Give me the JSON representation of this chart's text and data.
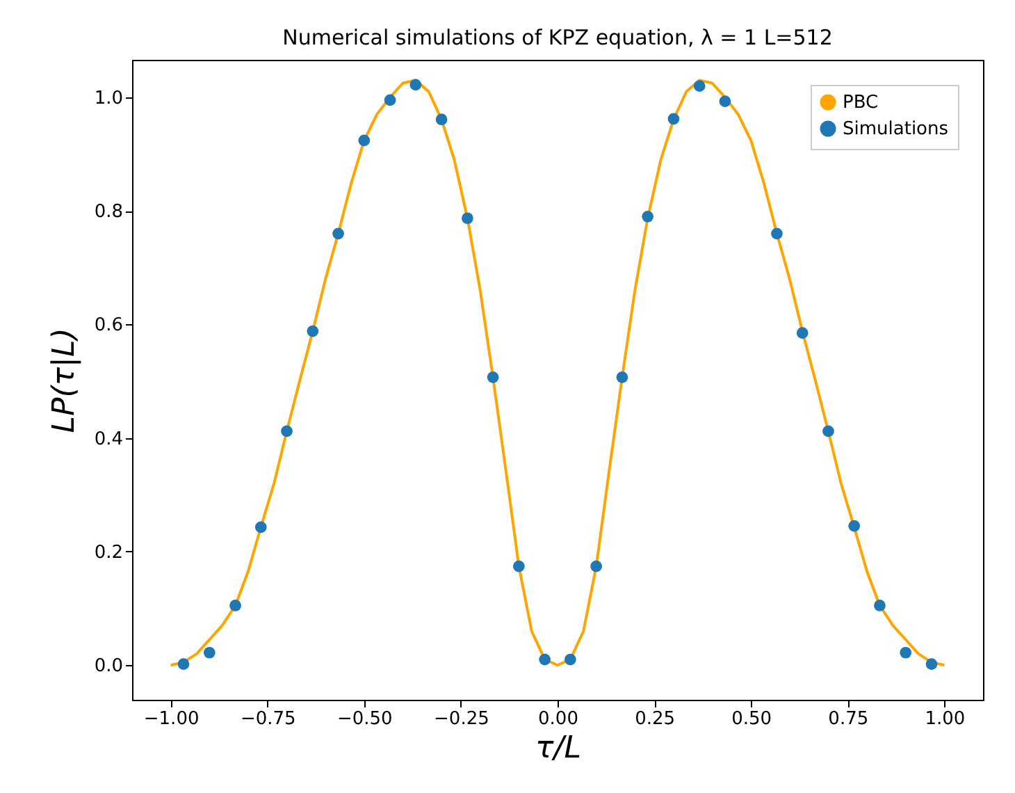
{
  "chart_data": {
    "type": "line",
    "title": "Numerical simulations of KPZ equation, λ = 1 L=512",
    "xlabel": "τ/L",
    "ylabel": "LP(τ|L)",
    "xlim": [
      -1.1,
      1.1
    ],
    "ylim": [
      -0.061,
      1.066
    ],
    "xticks": [
      {
        "value": -1,
        "label": "−1.00"
      },
      {
        "value": -0.75,
        "label": "−0.75"
      },
      {
        "value": -0.5,
        "label": "−0.50"
      },
      {
        "value": -0.25,
        "label": "−0.25"
      },
      {
        "value": 0,
        "label": "0.00"
      },
      {
        "value": 0.25,
        "label": "0.25"
      },
      {
        "value": 0.5,
        "label": "0.50"
      },
      {
        "value": 0.75,
        "label": "0.75"
      },
      {
        "value": 1,
        "label": "1.00"
      }
    ],
    "yticks": [
      {
        "value": 0,
        "label": "0.0"
      },
      {
        "value": 0.2,
        "label": "0.2"
      },
      {
        "value": 0.4,
        "label": "0.4"
      },
      {
        "value": 0.6,
        "label": "0.6"
      },
      {
        "value": 0.8,
        "label": "0.8"
      },
      {
        "value": 1,
        "label": "1.0"
      }
    ],
    "grid": false,
    "legend": "top right",
    "series": [
      {
        "name": "PBC",
        "type": "line",
        "color": "#ffa500",
        "x": [
          -1,
          -0.967,
          -0.933,
          -0.9,
          -0.867,
          -0.833,
          -0.8,
          -0.767,
          -0.733,
          -0.7,
          -0.667,
          -0.633,
          -0.6,
          -0.567,
          -0.533,
          -0.5,
          -0.467,
          -0.433,
          -0.4,
          -0.367,
          -0.333,
          -0.3,
          -0.267,
          -0.233,
          -0.2,
          -0.167,
          -0.133,
          -0.1,
          -0.067,
          -0.033,
          0,
          0.033,
          0.067,
          0.1,
          0.133,
          0.167,
          0.2,
          0.233,
          0.267,
          0.3,
          0.333,
          0.367,
          0.4,
          0.433,
          0.467,
          0.5,
          0.533,
          0.567,
          0.6,
          0.633,
          0.667,
          0.7,
          0.733,
          0.767,
          0.8,
          0.833,
          0.867,
          0.9,
          0.933,
          0.967,
          1
        ],
        "values": [
          0,
          0.005,
          0.02,
          0.045,
          0.07,
          0.105,
          0.165,
          0.243,
          0.32,
          0.412,
          0.5,
          0.588,
          0.68,
          0.76,
          0.85,
          0.924,
          0.97,
          1.0,
          1.025,
          1.03,
          1.01,
          0.961,
          0.89,
          0.787,
          0.66,
          0.507,
          0.34,
          0.174,
          0.06,
          0.01,
          0,
          0.01,
          0.06,
          0.174,
          0.34,
          0.507,
          0.66,
          0.787,
          0.89,
          0.961,
          1.01,
          1.03,
          1.025,
          1.0,
          0.97,
          0.924,
          0.85,
          0.76,
          0.68,
          0.588,
          0.5,
          0.412,
          0.32,
          0.243,
          0.165,
          0.105,
          0.07,
          0.045,
          0.02,
          0.005,
          0
        ]
      },
      {
        "name": "Simulations",
        "type": "scatter",
        "color": "#1f77b4",
        "marker": "circle",
        "x": [
          -0.967,
          -0.9,
          -0.833,
          -0.767,
          -0.7,
          -0.633,
          -0.567,
          -0.5,
          -0.433,
          -0.367,
          -0.3,
          -0.233,
          -0.167,
          -0.1,
          -0.033,
          0.033,
          0.1,
          0.167,
          0.233,
          0.3,
          0.367,
          0.433,
          0.567,
          0.633,
          0.7,
          0.767,
          0.833,
          0.9,
          0.967
        ],
        "values": [
          0.002,
          0.022,
          0.105,
          0.243,
          0.412,
          0.588,
          0.76,
          0.924,
          0.995,
          1.022,
          0.961,
          0.787,
          0.507,
          0.174,
          0.01,
          0.01,
          0.174,
          0.507,
          0.79,
          0.962,
          1.02,
          0.993,
          0.76,
          0.585,
          0.412,
          0.245,
          0.105,
          0.022,
          0.002
        ]
      }
    ]
  }
}
